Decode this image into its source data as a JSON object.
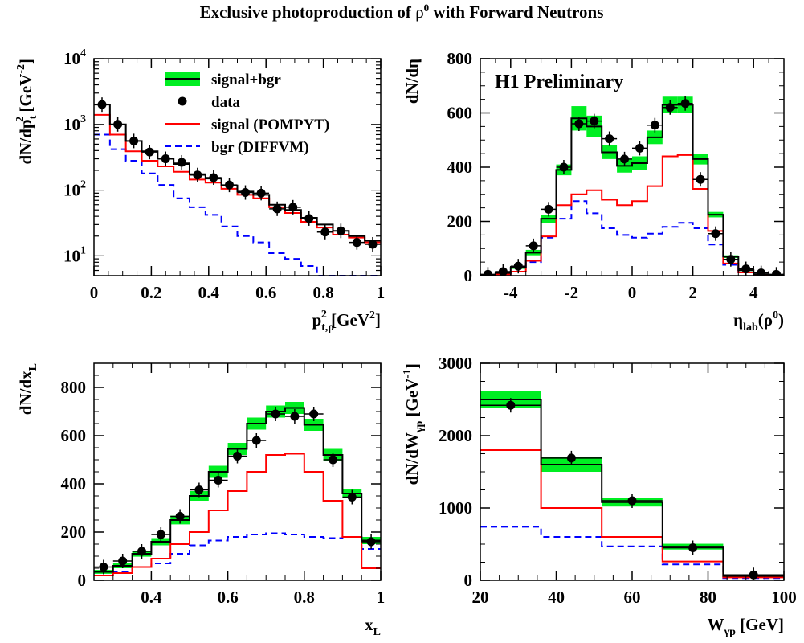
{
  "figure": {
    "title_main": "Exclusive photoproduction of ",
    "title_rho": "ρ",
    "title_sup": "0",
    "title_tail": " with Forward Neutrons"
  },
  "colors": {
    "band": "#00ee22",
    "total": "#000000",
    "signal": "#ff0000",
    "bgr": "#0000ff",
    "data": "#000000"
  },
  "chart_data": [
    {
      "id": "pt2",
      "type": "line",
      "ylog": true,
      "xlim": [
        0,
        1
      ],
      "ylim": [
        5,
        10000
      ],
      "xticks": [
        0,
        0.2,
        0.4,
        0.6,
        0.8,
        1
      ],
      "xtick_labels": [
        "0",
        "0.2",
        "0.4",
        "0.6",
        "0.8",
        "1"
      ],
      "ytick_labels": [
        {
          "v": 10,
          "base": "10",
          "exp": "1"
        },
        {
          "v": 100,
          "base": "10",
          "exp": "2"
        },
        {
          "v": 1000,
          "base": "10",
          "exp": "3"
        },
        {
          "v": 10000,
          "base": "10",
          "exp": "4"
        }
      ],
      "xlabel": {
        "base": "p",
        "sub": "t,ρ",
        "sup": "2",
        "rest": " [GeV",
        "unit_sup": "2",
        "close": "]"
      },
      "ylabel": {
        "a": "dN/dp",
        "sub": "t",
        "sup": "2",
        "b": " [GeV",
        "usup": "-2",
        "c": "]"
      },
      "legend": {
        "position": "top-right",
        "entries": [
          "signal+bgr",
          "data",
          "signal (POMPYT)",
          "bgr (DIFFVM)"
        ]
      },
      "bin_edges": [
        0,
        0.0556,
        0.1111,
        0.1667,
        0.2222,
        0.2778,
        0.3333,
        0.3889,
        0.4444,
        0.5,
        0.5556,
        0.6111,
        0.6667,
        0.7222,
        0.7778,
        0.8333,
        0.8889,
        0.9444,
        1.0
      ],
      "total": [
        2000,
        1000,
        560,
        390,
        300,
        250,
        175,
        150,
        118,
        95,
        85,
        60,
        50,
        38,
        30,
        24,
        20,
        17
      ],
      "signal": [
        1400,
        700,
        390,
        280,
        230,
        190,
        145,
        130,
        105,
        85,
        75,
        55,
        45,
        33,
        27,
        21,
        19,
        16
      ],
      "bgr": [
        700,
        420,
        280,
        180,
        120,
        75,
        55,
        42,
        28,
        20,
        16,
        11,
        9,
        7,
        5,
        4,
        3,
        3
      ],
      "data_x": [
        0.028,
        0.083,
        0.139,
        0.194,
        0.25,
        0.306,
        0.361,
        0.417,
        0.472,
        0.528,
        0.583,
        0.639,
        0.694,
        0.75,
        0.806,
        0.861,
        0.917,
        0.972
      ],
      "data_y": [
        2000,
        1000,
        560,
        380,
        300,
        265,
        170,
        155,
        120,
        92,
        90,
        52,
        55,
        37,
        23,
        24,
        16,
        15
      ]
    },
    {
      "id": "eta",
      "type": "line",
      "ylog": false,
      "xlim": [
        -5,
        5
      ],
      "ylim": [
        0,
        800
      ],
      "xticks": [
        -4,
        -2,
        0,
        2,
        4
      ],
      "xtick_labels": [
        "-4",
        "-2",
        "0",
        "2",
        "4"
      ],
      "yticks": [
        0,
        200,
        400,
        600,
        800
      ],
      "ytick_labels": [
        "0",
        "200",
        "400",
        "600",
        "800"
      ],
      "xlabel": {
        "base": "η",
        "sub": "lab",
        "rest": "(ρ",
        "unit_sup": "0",
        "close": ")"
      },
      "ylabel": {
        "a": "dN/dη"
      },
      "annotation": "H1 Preliminary",
      "bin_edges": [
        -5,
        -4.5,
        -4,
        -3.5,
        -3,
        -2.5,
        -2,
        -1.5,
        -1,
        -0.5,
        0,
        0.5,
        1,
        1.5,
        2,
        2.5,
        3,
        3.5,
        4,
        4.5,
        5
      ],
      "total": [
        2,
        10,
        30,
        85,
        210,
        390,
        580,
        550,
        455,
        405,
        415,
        510,
        630,
        630,
        430,
        225,
        70,
        20,
        5,
        2
      ],
      "band_halfwidth": [
        2,
        3,
        5,
        10,
        15,
        20,
        45,
        40,
        25,
        25,
        25,
        25,
        30,
        30,
        20,
        10,
        5,
        3,
        2,
        1
      ],
      "signal": [
        1,
        5,
        15,
        55,
        145,
        260,
        300,
        315,
        280,
        260,
        275,
        330,
        440,
        445,
        320,
        165,
        45,
        12,
        3,
        1
      ],
      "bgr": [
        1,
        5,
        15,
        50,
        140,
        210,
        275,
        230,
        175,
        150,
        140,
        155,
        180,
        195,
        175,
        115,
        40,
        12,
        3,
        1
      ],
      "data_x": [
        -4.75,
        -4.25,
        -3.75,
        -3.25,
        -2.75,
        -2.25,
        -1.75,
        -1.25,
        -0.75,
        -0.25,
        0.25,
        0.75,
        1.25,
        1.75,
        2.25,
        2.75,
        3.25,
        3.75,
        4.25,
        4.75
      ],
      "data_y": [
        5,
        15,
        35,
        110,
        245,
        400,
        560,
        570,
        505,
        430,
        470,
        555,
        620,
        635,
        355,
        155,
        60,
        25,
        10,
        5
      ]
    },
    {
      "id": "xl",
      "type": "line",
      "ylog": false,
      "xlim": [
        0.25,
        1.0
      ],
      "ylim": [
        0,
        900
      ],
      "xticks": [
        0.4,
        0.6,
        0.8,
        1.0
      ],
      "xtick_labels": [
        "0.4",
        "0.6",
        "0.8",
        "1"
      ],
      "yticks": [
        0,
        200,
        400,
        600,
        800
      ],
      "ytick_labels": [
        "0",
        "200",
        "400",
        "600",
        "800"
      ],
      "xlabel": {
        "base": "x",
        "sub": "L"
      },
      "ylabel": {
        "a": "dN/dx",
        "sub": "L"
      },
      "bin_edges": [
        0.25,
        0.3,
        0.35,
        0.4,
        0.45,
        0.5,
        0.55,
        0.6,
        0.65,
        0.7,
        0.75,
        0.8,
        0.85,
        0.9,
        0.95,
        1.0
      ],
      "total": [
        35,
        60,
        110,
        160,
        250,
        350,
        450,
        545,
        650,
        700,
        715,
        645,
        520,
        360,
        165
      ],
      "band_halfwidth": [
        8,
        10,
        12,
        15,
        18,
        20,
        25,
        25,
        25,
        25,
        25,
        25,
        25,
        20,
        15
      ],
      "signal": [
        20,
        30,
        55,
        90,
        150,
        200,
        290,
        370,
        450,
        520,
        525,
        450,
        330,
        180,
        50
      ],
      "bgr": [
        20,
        35,
        55,
        70,
        110,
        145,
        165,
        180,
        190,
        195,
        190,
        180,
        175,
        180,
        130
      ],
      "data_x": [
        0.275,
        0.325,
        0.375,
        0.425,
        0.475,
        0.525,
        0.575,
        0.625,
        0.675,
        0.725,
        0.775,
        0.825,
        0.875,
        0.925,
        0.975
      ],
      "data_y": [
        55,
        80,
        120,
        190,
        265,
        375,
        415,
        515,
        580,
        690,
        680,
        690,
        500,
        345,
        160
      ]
    },
    {
      "id": "w",
      "type": "line",
      "ylog": false,
      "xlim": [
        20,
        100
      ],
      "ylim": [
        0,
        3000
      ],
      "xticks": [
        20,
        40,
        60,
        80,
        100
      ],
      "xtick_labels": [
        "20",
        "40",
        "60",
        "80",
        "100"
      ],
      "yticks": [
        0,
        1000,
        2000,
        3000
      ],
      "ytick_labels": [
        "0",
        "1000",
        "2000",
        "3000"
      ],
      "xlabel": {
        "base": "W",
        "sub": "γp",
        "rest": " [GeV",
        "close": "]"
      },
      "ylabel": {
        "a": "dN/dW",
        "sub": "γp",
        "b": " [GeV",
        "usup": "-1",
        "c": "]"
      },
      "bin_edges": [
        20,
        36,
        52,
        68,
        84,
        100
      ],
      "total": [
        2500,
        1600,
        1080,
        465,
        60
      ],
      "band_halfwidth": [
        120,
        100,
        60,
        40,
        15
      ],
      "signal": [
        1800,
        1000,
        600,
        260,
        40
      ],
      "bgr": [
        740,
        600,
        470,
        220,
        30
      ],
      "data_x": [
        28,
        44,
        60,
        76,
        92
      ],
      "data_y": [
        2420,
        1690,
        1100,
        450,
        75
      ]
    }
  ]
}
